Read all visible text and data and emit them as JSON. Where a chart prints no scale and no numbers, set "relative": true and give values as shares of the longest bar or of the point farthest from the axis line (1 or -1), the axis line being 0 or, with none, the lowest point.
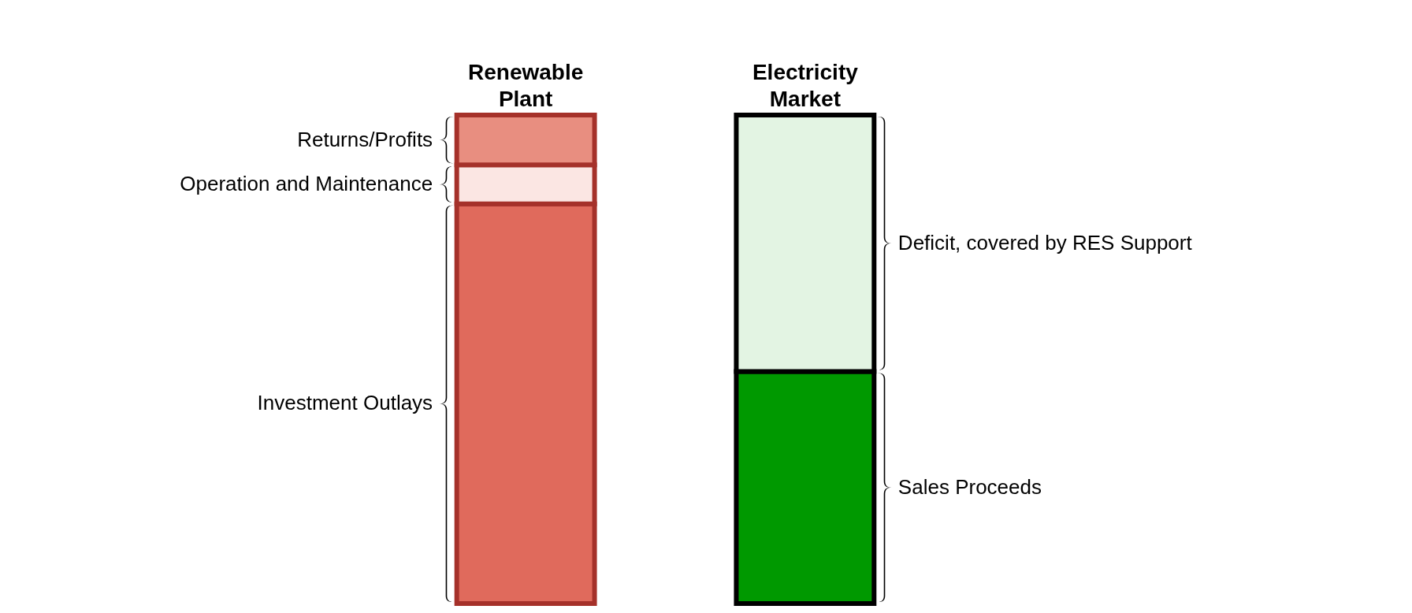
{
  "chart_data": {
    "type": "bar",
    "stacked": true,
    "relative": true,
    "legend": false,
    "categories": [
      "Renewable Plant",
      "Electricity Market"
    ],
    "series": [
      {
        "name": "Investment Outlays",
        "color": "#e06a5c",
        "values": [
          0.818,
          null
        ]
      },
      {
        "name": "Operation and Maintenance",
        "color": "#fbe6e3",
        "values": [
          0.08,
          null
        ]
      },
      {
        "name": "Returns/Profits",
        "color": "#e88e80",
        "values": [
          0.102,
          null
        ]
      },
      {
        "name": "Sales Proceeds",
        "color": "#009900",
        "values": [
          null,
          0.475
        ]
      },
      {
        "name": "Deficit, covered by RES Support",
        "color": "#e3f4e3",
        "values": [
          null,
          0.525
        ]
      }
    ]
  }
}
